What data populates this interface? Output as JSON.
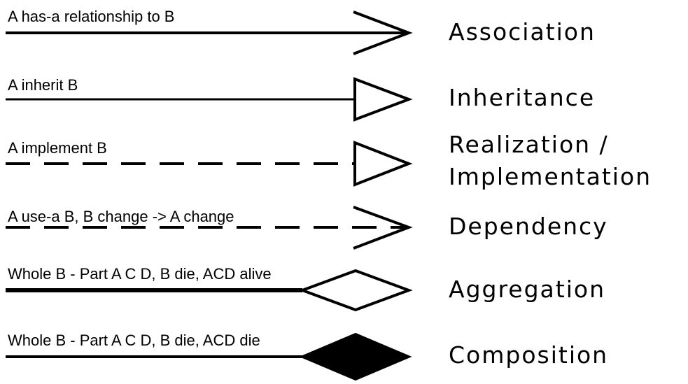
{
  "relationships": [
    {
      "description": "A has-a relationship to B",
      "name": "Association",
      "line": "solid",
      "head": "open-arrow"
    },
    {
      "description": "A inherit B",
      "name": "Inheritance",
      "line": "solid",
      "head": "hollow-triangle"
    },
    {
      "description": "A implement B",
      "name_line1": "Realization /",
      "name_line2": "Implementation",
      "line": "dashed",
      "head": "hollow-triangle"
    },
    {
      "description": "A use-a B, B change -> A change",
      "name": "Dependency",
      "line": "dashed",
      "head": "open-arrow"
    },
    {
      "description": "Whole B - Part A C D, B die, ACD alive",
      "name": "Aggregation",
      "line": "solid",
      "head": "hollow-diamond"
    },
    {
      "description": "Whole B - Part A C D, B die, ACD die",
      "name": "Composition",
      "line": "solid",
      "head": "filled-diamond"
    }
  ],
  "colors": {
    "stroke": "#000000",
    "background": "#ffffff"
  }
}
